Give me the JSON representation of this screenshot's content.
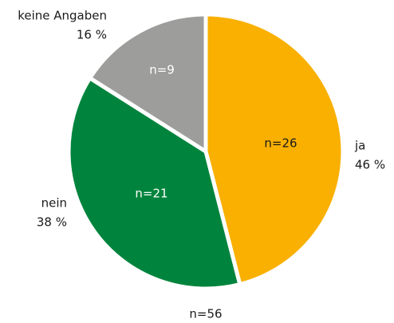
{
  "chart_data": {
    "type": "pie",
    "categories": [
      "ja",
      "nein",
      "keine Angaben"
    ],
    "values": [
      46,
      38,
      16
    ],
    "value_labels": [
      "46 %",
      "38 %",
      "16 %"
    ],
    "inner_labels": [
      "n=26",
      "n=21",
      "n=9"
    ],
    "colors": [
      "#f9b000",
      "#00843d",
      "#9d9d9c"
    ],
    "note": "n=56"
  }
}
